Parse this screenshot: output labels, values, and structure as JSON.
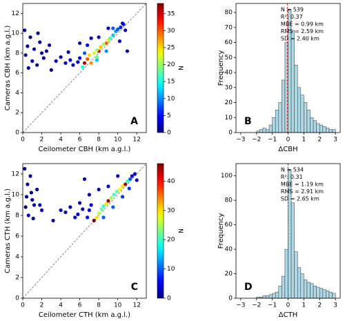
{
  "chart_data": [
    {
      "type": "scatter",
      "panel_label": "A",
      "xlabel": "Ceilometer CBH (km a.g.l.)",
      "ylabel": "Cameras CBH (km a.g.l.)",
      "xlim": [
        0,
        13
      ],
      "ylim": [
        0,
        13
      ],
      "xticks": [
        0,
        2,
        4,
        6,
        8,
        10,
        12
      ],
      "yticks": [
        0,
        2,
        4,
        6,
        8,
        10,
        12
      ],
      "colorbar_label": "N",
      "clim": [
        0,
        38
      ],
      "cticks": [
        0,
        5,
        10,
        15,
        20,
        25,
        30,
        35
      ],
      "colormap": "jet",
      "x": [
        0.2,
        0.5,
        0.8,
        1.0,
        0.3,
        1.2,
        1.5,
        1.8,
        2.2,
        2.5,
        2.8,
        3.0,
        0.6,
        1.6,
        2.0,
        3.5,
        4.0,
        4.5,
        5.0,
        5.3,
        5.8,
        6.0,
        4.8,
        6.0,
        9.0,
        7.2,
        8.0,
        11.0,
        10.2,
        6.8,
        6.5,
        10.6,
        10.8,
        10.3,
        10.0,
        9.8,
        9.5,
        9.2,
        9.0,
        8.8,
        8.5,
        8.2,
        8.0,
        7.8,
        7.5,
        7.2,
        7.0,
        6.8,
        6.5,
        6.3,
        7.8,
        8.8,
        10.5,
        9.5,
        7.8
      ],
      "y": [
        10.3,
        8.7,
        9.6,
        7.2,
        7.8,
        8.4,
        6.8,
        9.1,
        7.5,
        8.2,
        8.8,
        6.3,
        6.5,
        10.0,
        8.0,
        7.2,
        7.6,
        7.0,
        7.3,
        6.8,
        7.1,
        7.5,
        8.1,
        9.0,
        10.5,
        9.5,
        9.6,
        8.2,
        9.2,
        8.8,
        8.0,
        10.9,
        10.3,
        10.6,
        10.4,
        10.2,
        9.8,
        9.5,
        9.3,
        9.0,
        8.9,
        8.6,
        8.2,
        8.3,
        8.0,
        7.0,
        7.8,
        7.4,
        7.0,
        6.6,
        7.3,
        8.2,
        11.0,
        10.5,
        7.6
      ],
      "c": [
        1,
        1,
        1,
        2,
        1,
        2,
        1,
        1,
        2,
        1,
        2,
        1,
        1,
        1,
        2,
        2,
        2,
        3,
        3,
        2,
        3,
        4,
        2,
        2,
        3,
        3,
        4,
        2,
        4,
        5,
        8,
        4,
        3,
        6,
        8,
        10,
        12,
        16,
        22,
        30,
        20,
        26,
        34,
        20,
        22,
        28,
        25,
        30,
        37,
        15,
        12,
        10,
        3,
        8,
        18
      ]
    },
    {
      "type": "histogram",
      "panel_label": "B",
      "xlabel": "ΔCBH",
      "ylabel": "Frequency",
      "xlim": [
        -3.3,
        3.3
      ],
      "ylim": [
        0,
        86
      ],
      "xticks": [
        {
          "value": -3,
          "label": "−3"
        },
        {
          "value": -2,
          "label": "−2"
        },
        {
          "value": -1,
          "label": "−1"
        },
        0,
        1,
        2,
        3
      ],
      "yticks": [
        0,
        10,
        20,
        30,
        40,
        50,
        60,
        70,
        80
      ],
      "bins": [
        -3.0,
        -2.8,
        -2.6,
        -2.4,
        -2.2,
        -2.0,
        -1.8,
        -1.6,
        -1.4,
        -1.2,
        -1.0,
        -0.8,
        -0.6,
        -0.4,
        -0.2,
        0.0,
        0.2,
        0.4,
        0.6,
        0.8,
        1.0,
        1.2,
        1.4,
        1.6,
        1.8,
        2.0,
        2.2,
        2.4,
        2.6,
        2.8,
        3.0
      ],
      "values": [
        0,
        0,
        0,
        0,
        0,
        1,
        2,
        3,
        2,
        5,
        10,
        15,
        20,
        35,
        60,
        82,
        68,
        45,
        30,
        25,
        20,
        15,
        10,
        8,
        6,
        5,
        4,
        3,
        2,
        2
      ],
      "color": "#add8e6",
      "vline": -0.05,
      "vline_color": "#e02020",
      "stats": [
        "N = 539",
        "R²: 0.37",
        "MBE = 0.99 km",
        "RMS = 2.59 km",
        "SD = 2.40 km"
      ]
    },
    {
      "type": "scatter",
      "panel_label": "C",
      "xlabel": "Ceilometer CTH (km a.g.l.)",
      "ylabel": "Cameras CTH (km a.g.l.)",
      "xlim": [
        0,
        13
      ],
      "ylim": [
        0,
        13
      ],
      "xticks": [
        0,
        2,
        4,
        6,
        8,
        10,
        12
      ],
      "yticks": [
        0,
        2,
        4,
        6,
        8,
        10,
        12
      ],
      "colorbar_label": "N",
      "clim": [
        0,
        46
      ],
      "cticks": [
        0,
        10,
        20,
        30,
        40
      ],
      "colormap": "jet",
      "x": [
        0.2,
        0.5,
        0.8,
        1.0,
        0.3,
        0.6,
        1.2,
        1.5,
        1.8,
        2.0,
        0.9,
        0.4,
        1.1,
        3.2,
        4.0,
        4.5,
        5.0,
        5.5,
        6.0,
        5.8,
        6.3,
        7.0,
        6.5,
        12.0,
        8.0,
        9.0,
        10.0,
        7.2,
        7.0,
        6.8,
        8.5,
        9.5,
        10.5,
        11.2,
        11.8,
        11.5,
        11.3,
        11.0,
        10.8,
        10.5,
        10.2,
        9.9,
        9.6,
        9.3,
        8.8,
        8.5,
        8.3,
        8.0,
        7.8,
        9.0,
        7.5
      ],
      "y": [
        12.5,
        11.0,
        11.8,
        9.5,
        8.8,
        8.0,
        9.0,
        10.5,
        9.0,
        8.5,
        10.2,
        9.8,
        7.7,
        7.5,
        8.5,
        8.3,
        8.8,
        7.8,
        9.2,
        8.1,
        8.6,
        10.0,
        11.5,
        11.4,
        10.5,
        10.8,
        11.8,
        9.0,
        8.5,
        7.8,
        7.8,
        8.8,
        9.8,
        10.6,
        12.0,
        11.8,
        11.5,
        11.3,
        11.0,
        10.8,
        10.5,
        10.3,
        10.0,
        9.7,
        9.1,
        8.9,
        8.6,
        8.2,
        7.8,
        9.4,
        7.5
      ],
      "c": [
        1,
        1,
        1,
        2,
        1,
        2,
        2,
        1,
        2,
        2,
        1,
        1,
        1,
        2,
        2,
        2,
        3,
        3,
        3,
        3,
        3,
        2,
        2,
        3,
        3,
        5,
        4,
        4,
        5,
        6,
        10,
        10,
        8,
        8,
        4,
        6,
        10,
        20,
        44,
        30,
        28,
        22,
        20,
        25,
        30,
        20,
        22,
        25,
        30,
        44,
        46
      ]
    },
    {
      "type": "histogram",
      "panel_label": "D",
      "xlabel": "ΔCTH",
      "ylabel": "Frequency",
      "xlim": [
        -3.3,
        3.3
      ],
      "ylim": [
        0,
        110
      ],
      "xticks": [
        {
          "value": -3,
          "label": "−3"
        },
        {
          "value": -2,
          "label": "−2"
        },
        {
          "value": -1,
          "label": "−1"
        },
        0,
        1,
        2,
        3
      ],
      "yticks": [
        0,
        20,
        40,
        60,
        80,
        100
      ],
      "bins": [
        -3.0,
        -2.8,
        -2.6,
        -2.4,
        -2.2,
        -2.0,
        -1.8,
        -1.6,
        -1.4,
        -1.2,
        -1.0,
        -0.8,
        -0.6,
        -0.4,
        -0.2,
        0.0,
        0.2,
        0.4,
        0.6,
        0.8,
        1.0,
        1.2,
        1.4,
        1.6,
        1.8,
        2.0,
        2.2,
        2.4,
        2.6,
        2.8,
        3.0
      ],
      "values": [
        0,
        0,
        0,
        0,
        0,
        1,
        1,
        2,
        2,
        3,
        4,
        5,
        10,
        18,
        40,
        105,
        78,
        38,
        25,
        20,
        15,
        13,
        12,
        10,
        9,
        8,
        7,
        6,
        5,
        4
      ],
      "color": "#add8e6",
      "vline": 0.0,
      "vline_color": "#e02020",
      "stats": [
        "N = 534",
        "R²: 0.31",
        "MBE = 1.19 km",
        "RMS = 2.91 km",
        "SD = 2.65 km"
      ]
    }
  ]
}
